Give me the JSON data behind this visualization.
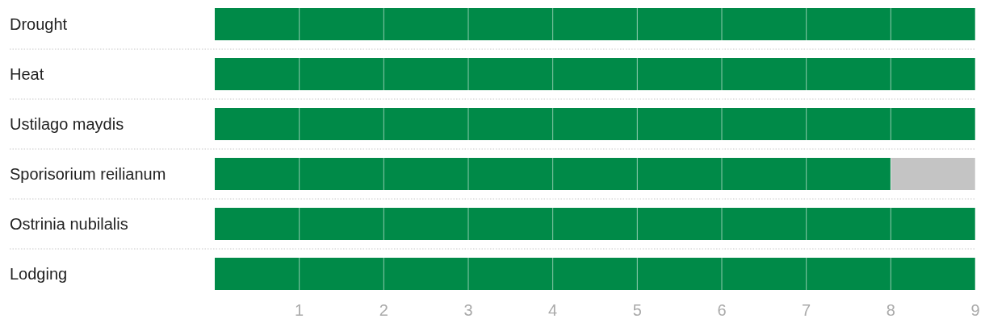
{
  "chart_data": {
    "type": "bar",
    "orientation": "horizontal",
    "stacked": true,
    "categories": [
      "Drought",
      "Heat",
      "Ustilago maydis",
      "Sporisorium reilianum",
      "Ostrinia nubilalis",
      "Lodging"
    ],
    "series": [
      {
        "color": "#008a48",
        "values": [
          9,
          9,
          9,
          8,
          9,
          9
        ]
      },
      {
        "color": "#c4c4c4",
        "values": [
          0,
          0,
          0,
          1,
          0,
          0
        ]
      }
    ],
    "xlim": [
      0,
      9
    ],
    "xticks": [
      1,
      2,
      3,
      4,
      5,
      6,
      7,
      8,
      9
    ],
    "grid": "x"
  }
}
